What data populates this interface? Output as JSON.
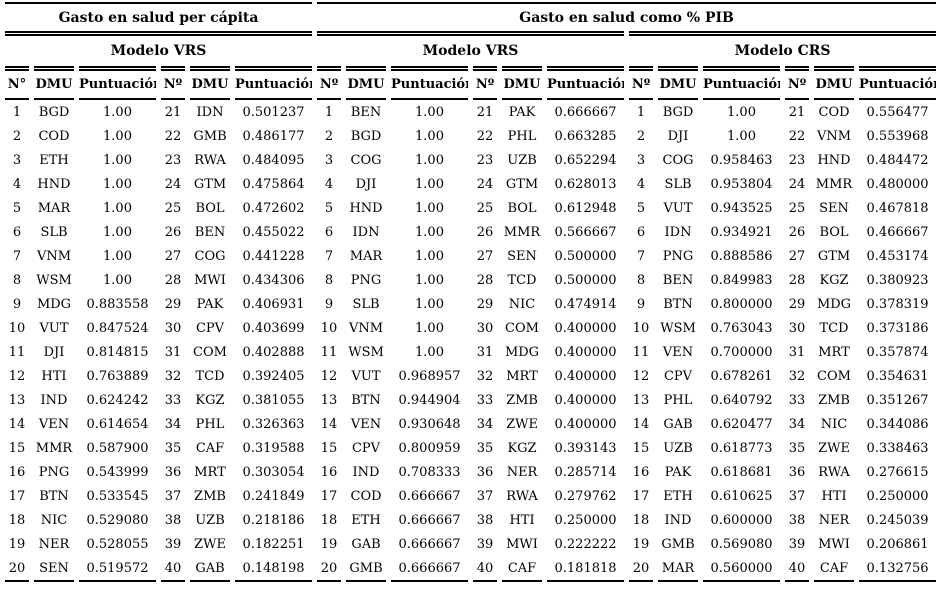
{
  "table": {
    "sections": [
      {
        "title": "Gasto en salud per cápita"
      },
      {
        "title": "Gasto en salud como % PIB"
      }
    ],
    "model_headers": [
      "Modelo VRS",
      "Modelo VRS",
      "Modelo CRS"
    ],
    "column_headers": [
      {
        "num": "N°",
        "dmu": "DMU",
        "score": "Puntuación"
      },
      {
        "num": "Nº",
        "dmu": "DMU",
        "score": "Puntuación"
      },
      {
        "num": "Nº",
        "dmu": "DMU",
        "score": "Puntuación"
      },
      {
        "num": "Nº",
        "dmu": "DMU",
        "score": "Puntuación"
      },
      {
        "num": "Nº",
        "dmu": "DMU",
        "score": "Puntuación"
      },
      {
        "num": "Nº",
        "dmu": "DMU",
        "score": "Puntuación"
      }
    ],
    "blocks": [
      {
        "section": "Gasto en salud per cápita",
        "model": "Modelo VRS",
        "rows": [
          [
            "1",
            "BGD",
            "1.00"
          ],
          [
            "2",
            "COD",
            "1.00"
          ],
          [
            "3",
            "ETH",
            "1.00"
          ],
          [
            "4",
            "HND",
            "1.00"
          ],
          [
            "5",
            "MAR",
            "1.00"
          ],
          [
            "6",
            "SLB",
            "1.00"
          ],
          [
            "7",
            "VNM",
            "1.00"
          ],
          [
            "8",
            "WSM",
            "1.00"
          ],
          [
            "9",
            "MDG",
            "0.883558"
          ],
          [
            "10",
            "VUT",
            "0.847524"
          ],
          [
            "11",
            "DJI",
            "0.814815"
          ],
          [
            "12",
            "HTI",
            "0.763889"
          ],
          [
            "13",
            "IND",
            "0.624242"
          ],
          [
            "14",
            "VEN",
            "0.614654"
          ],
          [
            "15",
            "MMR",
            "0.587900"
          ],
          [
            "16",
            "PNG",
            "0.543999"
          ],
          [
            "17",
            "BTN",
            "0.533545"
          ],
          [
            "18",
            "NIC",
            "0.529080"
          ],
          [
            "19",
            "NER",
            "0.528055"
          ],
          [
            "20",
            "SEN",
            "0.519572"
          ]
        ]
      },
      {
        "section": "Gasto en salud per cápita",
        "model": "Modelo VRS",
        "rows": [
          [
            "21",
            "IDN",
            "0.501237"
          ],
          [
            "22",
            "GMB",
            "0.486177"
          ],
          [
            "23",
            "RWA",
            "0.484095"
          ],
          [
            "24",
            "GTM",
            "0.475864"
          ],
          [
            "25",
            "BOL",
            "0.472602"
          ],
          [
            "26",
            "BEN",
            "0.455022"
          ],
          [
            "27",
            "COG",
            "0.441228"
          ],
          [
            "28",
            "MWI",
            "0.434306"
          ],
          [
            "29",
            "PAK",
            "0.406931"
          ],
          [
            "30",
            "CPV",
            "0.403699"
          ],
          [
            "31",
            "COM",
            "0.402888"
          ],
          [
            "32",
            "TCD",
            "0.392405"
          ],
          [
            "33",
            "KGZ",
            "0.381055"
          ],
          [
            "34",
            "PHL",
            "0.326363"
          ],
          [
            "35",
            "CAF",
            "0.319588"
          ],
          [
            "36",
            "MRT",
            "0.303054"
          ],
          [
            "37",
            "ZMB",
            "0.241849"
          ],
          [
            "38",
            "UZB",
            "0.218186"
          ],
          [
            "39",
            "ZWE",
            "0.182251"
          ],
          [
            "40",
            "GAB",
            "0.148198"
          ]
        ]
      },
      {
        "section": "Gasto en salud como % PIB",
        "model": "Modelo VRS",
        "rows": [
          [
            "1",
            "BEN",
            "1.00"
          ],
          [
            "2",
            "BGD",
            "1.00"
          ],
          [
            "3",
            "COG",
            "1.00"
          ],
          [
            "4",
            "DJI",
            "1.00"
          ],
          [
            "5",
            "HND",
            "1.00"
          ],
          [
            "6",
            "IDN",
            "1.00"
          ],
          [
            "7",
            "MAR",
            "1.00"
          ],
          [
            "8",
            "PNG",
            "1.00"
          ],
          [
            "9",
            "SLB",
            "1.00"
          ],
          [
            "10",
            "VNM",
            "1.00"
          ],
          [
            "11",
            "WSM",
            "1.00"
          ],
          [
            "12",
            "VUT",
            "0.968957"
          ],
          [
            "13",
            "BTN",
            "0.944904"
          ],
          [
            "14",
            "VEN",
            "0.930648"
          ],
          [
            "15",
            "CPV",
            "0.800959"
          ],
          [
            "16",
            "IND",
            "0.708333"
          ],
          [
            "17",
            "COD",
            "0.666667"
          ],
          [
            "18",
            "ETH",
            "0.666667"
          ],
          [
            "19",
            "GAB",
            "0.666667"
          ],
          [
            "20",
            "GMB",
            "0.666667"
          ]
        ]
      },
      {
        "section": "Gasto en salud como % PIB",
        "model": "Modelo VRS",
        "rows": [
          [
            "21",
            "PAK",
            "0.666667"
          ],
          [
            "22",
            "PHL",
            "0.663285"
          ],
          [
            "23",
            "UZB",
            "0.652294"
          ],
          [
            "24",
            "GTM",
            "0.628013"
          ],
          [
            "25",
            "BOL",
            "0.612948"
          ],
          [
            "26",
            "MMR",
            "0.566667"
          ],
          [
            "27",
            "SEN",
            "0.500000"
          ],
          [
            "28",
            "TCD",
            "0.500000"
          ],
          [
            "29",
            "NIC",
            "0.474914"
          ],
          [
            "30",
            "COM",
            "0.400000"
          ],
          [
            "31",
            "MDG",
            "0.400000"
          ],
          [
            "32",
            "MRT",
            "0.400000"
          ],
          [
            "33",
            "ZMB",
            "0.400000"
          ],
          [
            "34",
            "ZWE",
            "0.400000"
          ],
          [
            "35",
            "KGZ",
            "0.393143"
          ],
          [
            "36",
            "NER",
            "0.285714"
          ],
          [
            "37",
            "RWA",
            "0.279762"
          ],
          [
            "38",
            "HTI",
            "0.250000"
          ],
          [
            "39",
            "MWI",
            "0.222222"
          ],
          [
            "40",
            "CAF",
            "0.181818"
          ]
        ]
      },
      {
        "section": "Gasto en salud como % PIB",
        "model": "Modelo CRS",
        "rows": [
          [
            "1",
            "BGD",
            "1.00"
          ],
          [
            "2",
            "DJI",
            "1.00"
          ],
          [
            "3",
            "COG",
            "0.958463"
          ],
          [
            "4",
            "SLB",
            "0.953804"
          ],
          [
            "5",
            "VUT",
            "0.943525"
          ],
          [
            "6",
            "IDN",
            "0.934921"
          ],
          [
            "7",
            "PNG",
            "0.888586"
          ],
          [
            "8",
            "BEN",
            "0.849983"
          ],
          [
            "9",
            "BTN",
            "0.800000"
          ],
          [
            "10",
            "WSM",
            "0.763043"
          ],
          [
            "11",
            "VEN",
            "0.700000"
          ],
          [
            "12",
            "CPV",
            "0.678261"
          ],
          [
            "13",
            "PHL",
            "0.640792"
          ],
          [
            "14",
            "GAB",
            "0.620477"
          ],
          [
            "15",
            "UZB",
            "0.618773"
          ],
          [
            "16",
            "PAK",
            "0.618681"
          ],
          [
            "17",
            "ETH",
            "0.610625"
          ],
          [
            "18",
            "IND",
            "0.600000"
          ],
          [
            "19",
            "GMB",
            "0.569080"
          ],
          [
            "20",
            "MAR",
            "0.560000"
          ]
        ]
      },
      {
        "section": "Gasto en salud como % PIB",
        "model": "Modelo CRS",
        "rows": [
          [
            "21",
            "COD",
            "0.556477"
          ],
          [
            "22",
            "VNM",
            "0.553968"
          ],
          [
            "23",
            "HND",
            "0.484472"
          ],
          [
            "24",
            "MMR",
            "0.480000"
          ],
          [
            "25",
            "SEN",
            "0.467818"
          ],
          [
            "26",
            "BOL",
            "0.466667"
          ],
          [
            "27",
            "GTM",
            "0.453174"
          ],
          [
            "28",
            "KGZ",
            "0.380923"
          ],
          [
            "29",
            "MDG",
            "0.378319"
          ],
          [
            "30",
            "TCD",
            "0.373186"
          ],
          [
            "31",
            "MRT",
            "0.357874"
          ],
          [
            "32",
            "COM",
            "0.354631"
          ],
          [
            "33",
            "ZMB",
            "0.351267"
          ],
          [
            "34",
            "NIC",
            "0.344086"
          ],
          [
            "35",
            "ZWE",
            "0.338463"
          ],
          [
            "36",
            "RWA",
            "0.276615"
          ],
          [
            "37",
            "HTI",
            "0.250000"
          ],
          [
            "38",
            "NER",
            "0.245039"
          ],
          [
            "39",
            "MWI",
            "0.206861"
          ],
          [
            "40",
            "CAF",
            "0.132756"
          ]
        ]
      }
    ]
  },
  "colors": {
    "text": "#000000",
    "background": "#ffffff",
    "rule": "#000000"
  }
}
